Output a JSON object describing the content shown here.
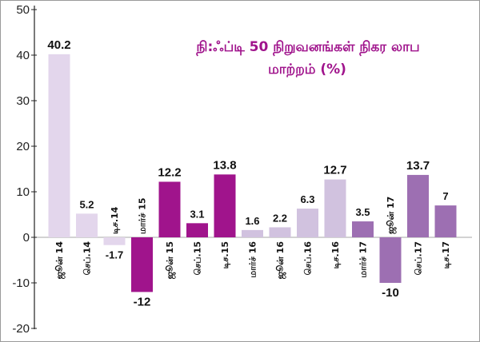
{
  "chart_data": {
    "type": "bar",
    "title_lines": [
      "நி:ஃப்டி 50 நிறுவனங்கள் நிகர லாப",
      "மாற்றம் (%)"
    ],
    "categories": [
      "ஜூன் 14",
      "செப்.14",
      "டிச.14",
      "மார்ச் 15",
      "ஜூன் 15",
      "செப்.15",
      "டிச.15",
      "மார்ச் 16",
      "ஜூன் 16",
      "செப்.16",
      "டிச.16",
      "மார்ச் 17",
      "ஜூன் 17",
      "செப்.17",
      "டிச.17"
    ],
    "values": [
      40.2,
      5.2,
      -1.7,
      -12,
      12.2,
      3.1,
      13.8,
      1.6,
      2.2,
      6.3,
      12.7,
      3.5,
      -10,
      13.7,
      7
    ],
    "value_labels": [
      "40.2",
      "5.2",
      "-1.7",
      "-12",
      "12.2",
      "3.1",
      "13.8",
      "1.6",
      "2.2",
      "6.3",
      "12.7",
      "3.5",
      "-10",
      "13.7",
      "7"
    ],
    "colors": [
      "#e3d6ec",
      "#e3d6ec",
      "#e3d6ec",
      "#a0148c",
      "#a0148c",
      "#a0148c",
      "#a0148c",
      "#d1c2df",
      "#d1c2df",
      "#d1c2df",
      "#d1c2df",
      "#9d6fb2",
      "#9d6fb2",
      "#9d6fb2",
      "#9d6fb2"
    ],
    "y_ticks": [
      "-20",
      "-10",
      "0",
      "10",
      "20",
      "30",
      "40",
      "50"
    ],
    "ylim": [
      -20,
      50
    ],
    "xlabel": "",
    "ylabel": "",
    "grid": false,
    "legend": "none"
  }
}
